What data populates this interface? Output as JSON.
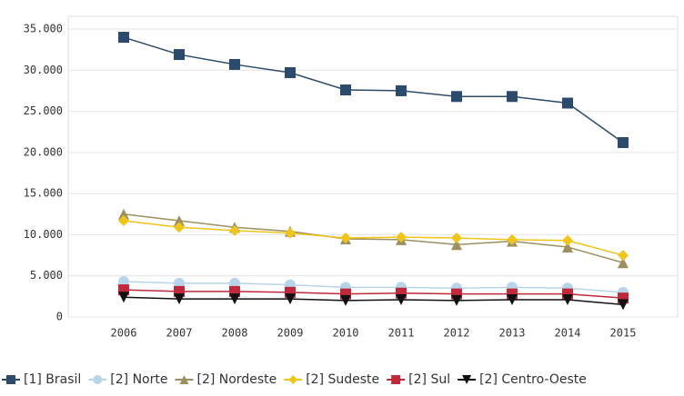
{
  "chart_data": {
    "type": "line",
    "categories": [
      "2006",
      "2007",
      "2008",
      "2009",
      "2010",
      "2011",
      "2012",
      "2013",
      "2014",
      "2015"
    ],
    "ylim": [
      0,
      35000
    ],
    "yticks": [
      {
        "value": 0,
        "label": "0"
      },
      {
        "value": 5000,
        "label": "5.000"
      },
      {
        "value": 10000,
        "label": "10.000"
      },
      {
        "value": 15000,
        "label": "15.000"
      },
      {
        "value": 20000,
        "label": "20.000"
      },
      {
        "value": 25000,
        "label": "25.000"
      },
      {
        "value": 30000,
        "label": "30.000"
      },
      {
        "value": 35000,
        "label": "35.000"
      }
    ],
    "grid": true,
    "legend": "bottom",
    "series": [
      {
        "name": "[1] Brasil",
        "color": "#2c4a6b",
        "marker": "square",
        "values": [
          34000,
          31900,
          30700,
          29700,
          27600,
          27500,
          26800,
          26800,
          26000,
          21200
        ]
      },
      {
        "name": "[2] Norte",
        "color": "#b8d4e8",
        "marker": "circle",
        "values": [
          4300,
          4100,
          4100,
          3900,
          3600,
          3600,
          3500,
          3600,
          3500,
          3000
        ]
      },
      {
        "name": "[2] Nordeste",
        "color": "#9c9060",
        "marker": "triangle",
        "values": [
          12500,
          11700,
          10900,
          10400,
          9500,
          9400,
          8800,
          9200,
          8500,
          6600
        ]
      },
      {
        "name": "[2] Sudeste",
        "color": "#f0c419",
        "marker": "diamond",
        "values": [
          11700,
          10900,
          10500,
          10200,
          9600,
          9700,
          9600,
          9400,
          9300,
          7500
        ]
      },
      {
        "name": "[2] Sul",
        "color": "#c0283c",
        "marker": "square",
        "values": [
          3300,
          3100,
          3100,
          3000,
          2800,
          2900,
          2800,
          2800,
          2800,
          2300
        ]
      },
      {
        "name": "[2] Centro-Oeste",
        "color": "#111111",
        "marker": "down",
        "values": [
          2400,
          2200,
          2200,
          2200,
          2000,
          2100,
          2000,
          2100,
          2100,
          1500
        ]
      }
    ]
  }
}
